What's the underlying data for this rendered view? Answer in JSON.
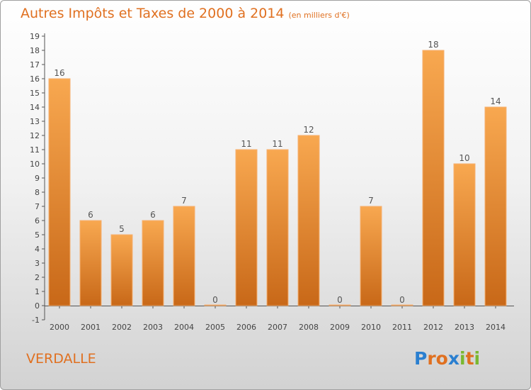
{
  "header": {
    "title": "Autres Impôts et Taxes de 2000 à 2014",
    "subtitle": "(en milliers d'€)"
  },
  "footer": {
    "city": "VERDALLE",
    "logo": "Proxiti"
  },
  "colors": {
    "accent": "#e07020",
    "bar_light": "#f8a850",
    "bar_dark": "#c86818",
    "logo_letters": [
      "#2a7fd0",
      "#e07020",
      "#e07020",
      "#2a7fd0",
      "#7ab830",
      "#e07020",
      "#7ab830"
    ]
  },
  "chart_data": {
    "type": "bar",
    "categories": [
      "2000",
      "2001",
      "2002",
      "2003",
      "2004",
      "2005",
      "2006",
      "2007",
      "2008",
      "2009",
      "2010",
      "2011",
      "2012",
      "2013",
      "2014"
    ],
    "values": [
      16,
      6,
      5,
      6,
      7,
      0,
      11,
      11,
      12,
      0,
      7,
      0,
      18,
      10,
      14
    ],
    "value_labels": [
      "16",
      "6",
      "5",
      "6",
      "7",
      "0",
      "11",
      "11",
      "12",
      "0",
      "7",
      "0",
      "18",
      "10",
      "14"
    ],
    "y_ticks": [
      "-1",
      "0",
      "1",
      "2",
      "3",
      "4",
      "5",
      "6",
      "7",
      "8",
      "9",
      "10",
      "11",
      "12",
      "13",
      "14",
      "15",
      "16",
      "17",
      "18",
      "19"
    ],
    "title": "Autres Impôts et Taxes de 2000 à 2014",
    "subtitle": "(en milliers d'€)",
    "xlabel": "",
    "ylabel": "",
    "ylim": [
      -1,
      19
    ],
    "grid": false,
    "legend": "none"
  }
}
